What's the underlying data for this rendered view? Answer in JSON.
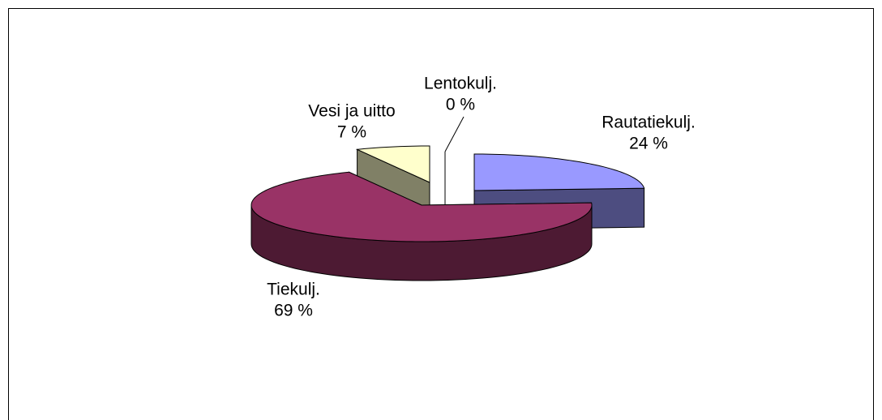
{
  "chart_data": {
    "type": "pie3d",
    "categories": [
      "Rautatiekulj.",
      "Tiekulj.",
      "Vesi ja uitto",
      "Lentokulj."
    ],
    "values": [
      24,
      69,
      7,
      0
    ],
    "value_labels": [
      "24 %",
      "69 %",
      "7 %",
      "0 %"
    ],
    "colors": [
      "#9999ff",
      "#993366",
      "#ffffcc",
      "#ffffff"
    ]
  }
}
